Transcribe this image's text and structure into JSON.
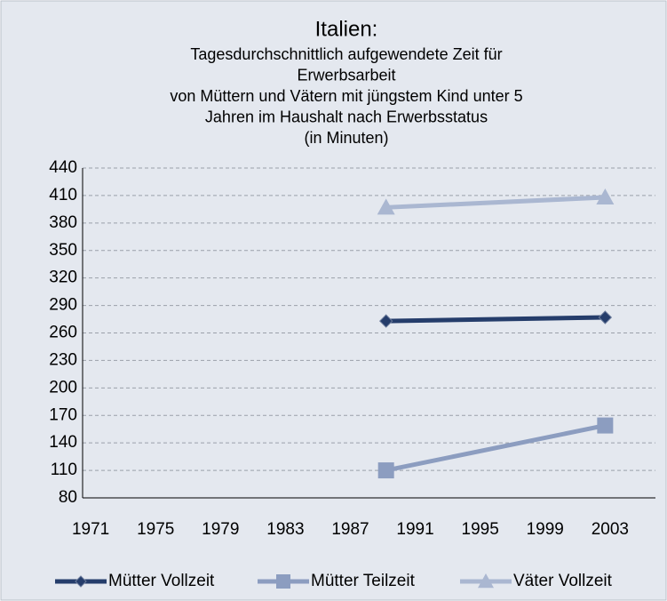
{
  "chart_data": {
    "type": "line",
    "title": "Italien:",
    "subtitle": [
      "Tagesdurchschnittlich aufgewendete Zeit für",
      "Erwerbsarbeit",
      "von Müttern und Vätern mit jüngstem Kind unter 5",
      "Jahren im Haushalt nach Erwerbsstatus",
      "(in Minuten)"
    ],
    "x": [
      1989.2,
      2002.7
    ],
    "series": [
      {
        "name": "Mütter Vollzeit",
        "color": "#253d6b",
        "marker": "diamond",
        "values": [
          273,
          277
        ]
      },
      {
        "name": "Mütter Teilzeit",
        "color": "#8c9dc0",
        "marker": "square",
        "values": [
          110,
          159
        ]
      },
      {
        "name": "Väter Vollzeit",
        "color": "#aab7d1",
        "marker": "triangle",
        "values": [
          397,
          408
        ]
      }
    ],
    "xlim": [
      1970.5,
      2005.8
    ],
    "xticks": [
      1971,
      1975,
      1979,
      1983,
      1987,
      1991,
      1995,
      1999,
      2003
    ],
    "ylim": [
      80,
      440
    ],
    "yticks": [
      80,
      110,
      140,
      170,
      200,
      230,
      260,
      290,
      320,
      350,
      380,
      410,
      440
    ],
    "grid": true
  }
}
